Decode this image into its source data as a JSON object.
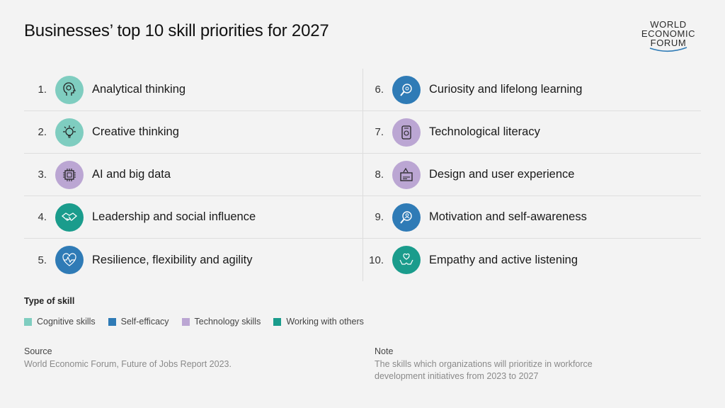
{
  "title": "Businesses’ top 10 skill priorities for 2027",
  "logo": {
    "line1": "WORLD",
    "line2": "ECONOMIC",
    "line3": "FORUM"
  },
  "skills_left": [
    {
      "rank": "1.",
      "label": "Analytical thinking",
      "icon": "brain-head-icon",
      "color": "#7fcdc0"
    },
    {
      "rank": "2.",
      "label": "Creative thinking",
      "icon": "lightbulb-gear-icon",
      "color": "#7fcdc0"
    },
    {
      "rank": "3.",
      "label": "AI and big data",
      "icon": "chip-icon",
      "color": "#bba6d3"
    },
    {
      "rank": "4.",
      "label": "Leadership and social influence",
      "icon": "handshake-icon",
      "color": "#1a9c8c"
    },
    {
      "rank": "5.",
      "label": "Resilience, flexibility and agility",
      "icon": "heartbeat-icon",
      "color": "#2f7bb6"
    }
  ],
  "skills_right": [
    {
      "rank": "6.",
      "label": "Curiosity and lifelong learning",
      "icon": "magnifier-icon",
      "color": "#2f7bb6"
    },
    {
      "rank": "7.",
      "label": "Technological literacy",
      "icon": "device-icon",
      "color": "#bba6d3"
    },
    {
      "rank": "8.",
      "label": "Design and user experience",
      "icon": "design-icon",
      "color": "#bba6d3"
    },
    {
      "rank": "9.",
      "label": "Motivation and self-awareness",
      "icon": "self-search-icon",
      "color": "#2f7bb6"
    },
    {
      "rank": "10.",
      "label": "Empathy and active listening",
      "icon": "hands-heart-icon",
      "color": "#1a9c8c"
    }
  ],
  "legend": {
    "title": "Type of skill",
    "items": [
      {
        "label": "Cognitive skills",
        "color": "#7fcdc0"
      },
      {
        "label": "Self-efficacy",
        "color": "#2f7bb6"
      },
      {
        "label": "Technology skills",
        "color": "#bba6d3"
      },
      {
        "label": "Working with others",
        "color": "#1a9c8c"
      }
    ]
  },
  "source": {
    "label": "Source",
    "text": "World Economic Forum, Future of Jobs Report 2023."
  },
  "note": {
    "label": "Note",
    "line1": "The skills which organizations will prioritize in workforce",
    "line2": "development initiatives from 2023 to 2027"
  }
}
